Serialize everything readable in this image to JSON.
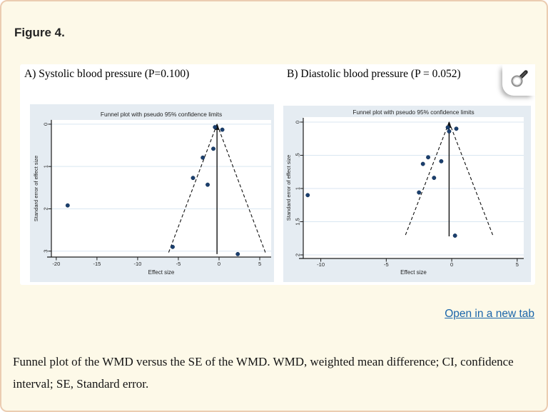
{
  "page": {
    "figure_label": "Figure 4.",
    "open_link_label": "Open in a new tab",
    "caption": "Funnel plot of the WMD versus the SE of the WMD. WMD, weighted mean difference; CI, confidence interval; SE, Standard error."
  },
  "panels": [
    {
      "label": "A) Systolic blood pressure (P=0.100)"
    },
    {
      "label": "B) Diastolic blood pressure (P = 0.052)"
    }
  ],
  "icons": {
    "zoom_button": "magnifier-icon"
  },
  "colors": {
    "page_bg": "#fdf9e8",
    "page_border": "#ebccb1",
    "figure_box_bg": "#ffffff",
    "plot_bg": "#e5ecf2",
    "plot_inner_bg": "#ffffff",
    "grid": "#d9e6f1",
    "point": "#1b3f6e",
    "point_edge": "#0d2a4d",
    "axis": "#1c1c1c",
    "funnel_line": "#111111",
    "plot_title": "#1f3050",
    "link": "#1b66aa"
  },
  "chart_data": [
    {
      "type": "scatter",
      "panel": "A",
      "title": "Funnel plot with pseudo 95% confidence limits",
      "xlabel": "Effect size",
      "ylabel": "Standard error of effect size",
      "p_value_label": "P=0.100",
      "xticks": [
        -20,
        -15,
        -10,
        -5,
        0,
        5
      ],
      "yticks": [
        0,
        1,
        2,
        3
      ],
      "ytick_labels": [
        "0",
        "1",
        "2",
        "3"
      ],
      "xlim": [
        -20.6,
        6.4
      ],
      "ylim": [
        -0.1,
        3.14
      ],
      "grid": true,
      "center_line_x": -0.25,
      "funnel_max_se": 3.07,
      "ci_multiplier": 1.96,
      "points": [
        [
          -0.5,
          0.07
        ],
        [
          0.4,
          0.13
        ],
        [
          -0.7,
          0.58
        ],
        [
          -2.0,
          0.79
        ],
        [
          -3.2,
          1.27
        ],
        [
          -1.4,
          1.43
        ],
        [
          -18.6,
          1.92
        ],
        [
          -5.7,
          2.9
        ],
        [
          2.3,
          3.07
        ]
      ]
    },
    {
      "type": "scatter",
      "panel": "B",
      "title": "Funnel plot with pseudo 95% confidence limits",
      "xlabel": "Effect size",
      "ylabel": "Standard error of effect size",
      "p_value_label": "P = 0.052",
      "xticks": [
        -10,
        -5,
        0,
        5
      ],
      "yticks": [
        0,
        0.5,
        1,
        1.5,
        2
      ],
      "ytick_labels": [
        "0",
        ".5",
        "1",
        "1.5",
        "2"
      ],
      "xlim": [
        -11.34,
        5.5
      ],
      "ylim": [
        -0.075,
        2.054
      ],
      "grid": true,
      "center_line_x": -0.2,
      "funnel_max_se": 1.72,
      "ci_multiplier": 1.96,
      "points": [
        [
          -0.3,
          0.08
        ],
        [
          -0.2,
          0.14
        ],
        [
          0.35,
          0.1
        ],
        [
          -1.8,
          0.53
        ],
        [
          -0.8,
          0.59
        ],
        [
          -2.2,
          0.63
        ],
        [
          -1.35,
          0.84
        ],
        [
          -2.5,
          1.06
        ],
        [
          -11.0,
          1.1
        ],
        [
          0.25,
          1.71
        ]
      ]
    }
  ]
}
